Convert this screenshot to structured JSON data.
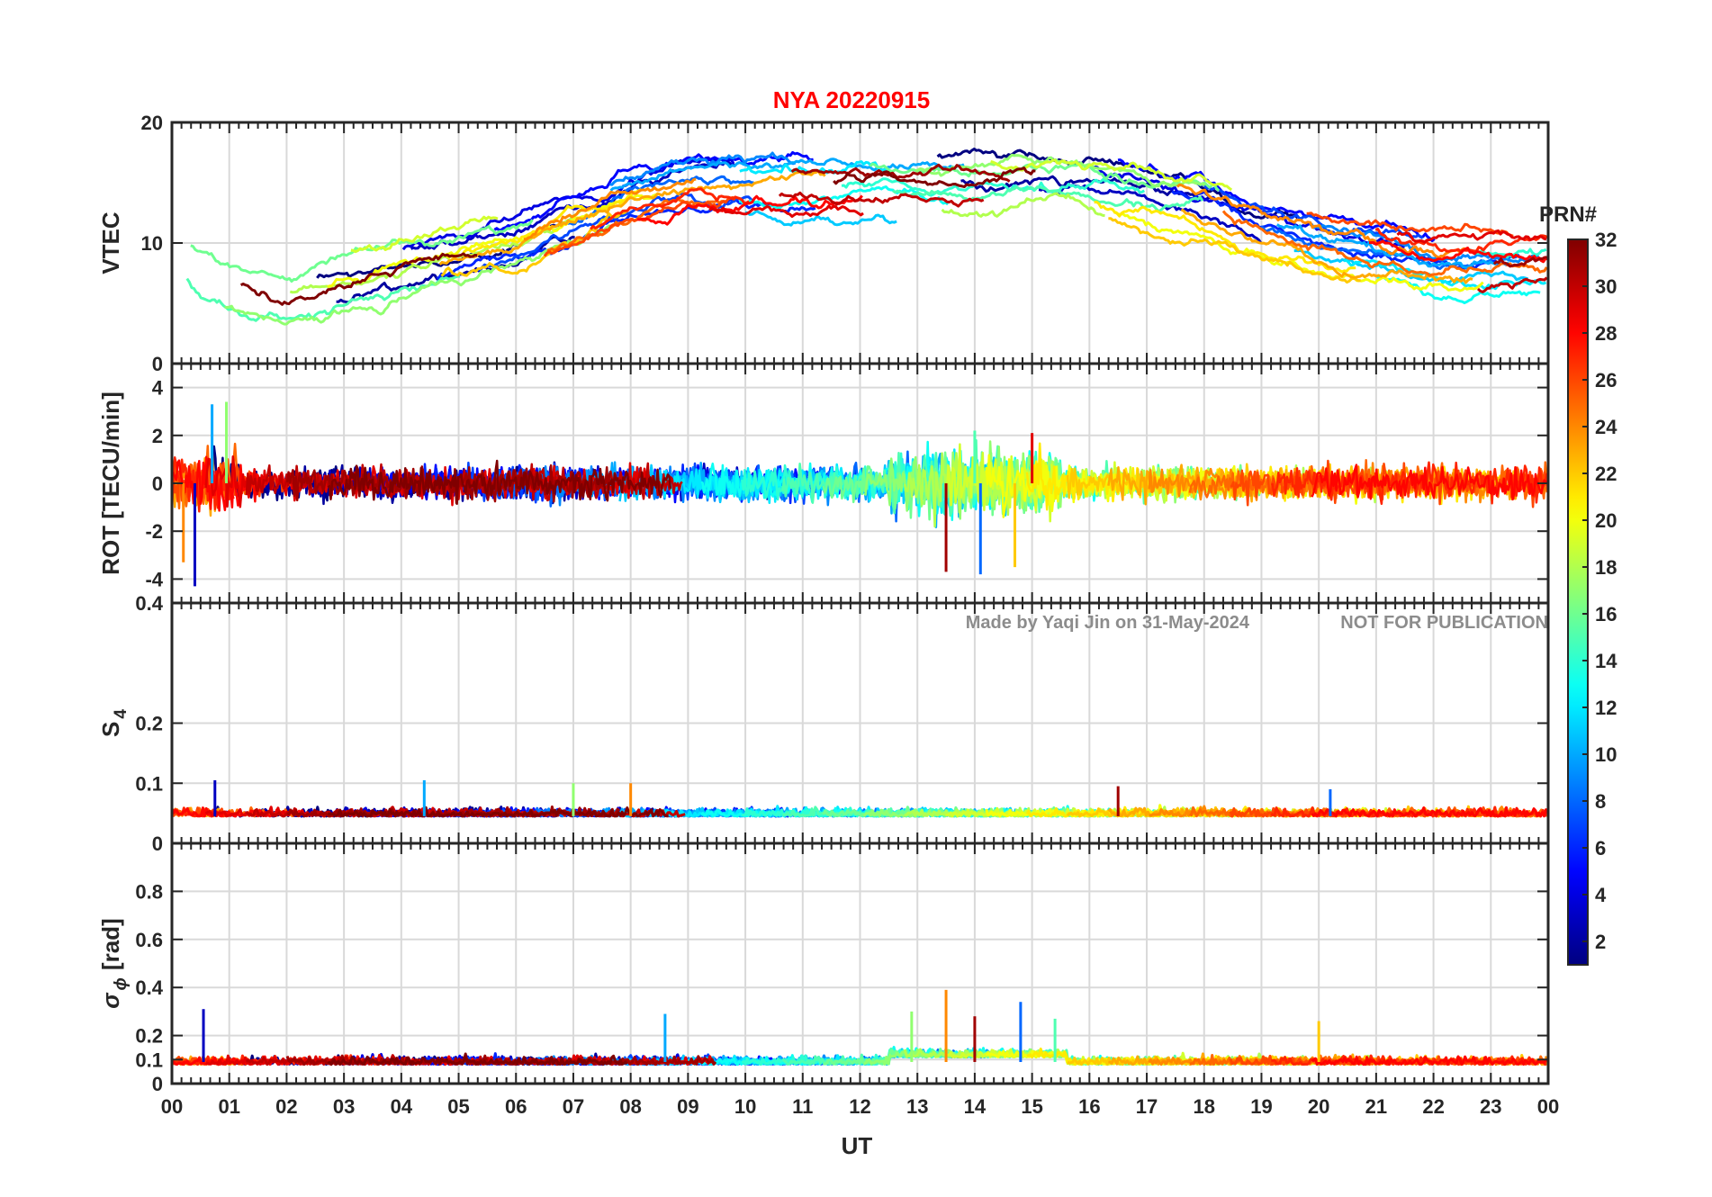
{
  "figure": {
    "title": "NYA   20220915",
    "watermark_author": "Made by Yaqi Jin on 31-May-2024",
    "watermark_notice": "NOT FOR PUBLICATION",
    "title_color": "#ff0000",
    "watermark_color": "#8c8c8c",
    "axis_color": "#262626"
  },
  "chart_data": [
    {
      "type": "line",
      "id": "vtec",
      "ylabel": "VTEC",
      "ylim": [
        0,
        20
      ],
      "yticks": [
        0,
        10,
        20
      ],
      "ytick_labels": [
        "0",
        "10",
        "20"
      ],
      "xlim": [
        0,
        24
      ],
      "grid": true,
      "series_note": "one line per satellite PRN 1-32, colored by PRN (jet colormap)",
      "profile_hours": [
        0,
        0.5,
        1,
        1.5,
        2,
        3,
        4,
        5,
        6,
        7,
        8,
        9,
        10,
        11,
        12,
        13,
        14,
        15,
        16,
        17,
        18,
        19,
        20,
        21,
        22,
        23,
        24
      ],
      "profile_values": [
        10,
        8,
        7,
        6,
        6,
        7,
        8,
        9,
        10,
        12,
        14,
        15,
        15,
        15,
        15,
        15,
        15,
        15,
        15,
        14,
        13,
        11,
        10,
        9,
        8,
        8,
        8
      ]
    },
    {
      "type": "line",
      "id": "rot",
      "ylabel": "ROT [TECU/min]",
      "ylim": [
        -5,
        5
      ],
      "yticks": [
        -4,
        -2,
        0,
        2,
        4
      ],
      "ytick_labels": [
        "-4",
        "-2",
        "0",
        "2",
        "4"
      ],
      "xlim": [
        0,
        24
      ],
      "grid": true,
      "series_note": "one line per satellite PRN 1-32",
      "spikes": [
        {
          "hour": 0.4,
          "value": -4.3
        },
        {
          "hour": 0.7,
          "value": 3.3
        },
        {
          "hour": 0.95,
          "value": 3.4
        },
        {
          "hour": 0.2,
          "value": -3.3
        },
        {
          "hour": 13.5,
          "value": -3.7
        },
        {
          "hour": 14.1,
          "value": -3.8
        },
        {
          "hour": 14.0,
          "value": 2.2
        },
        {
          "hour": 14.7,
          "value": -3.5
        },
        {
          "hour": 15.0,
          "value": 2.1
        }
      ]
    },
    {
      "type": "line",
      "id": "s4",
      "ylabel": "S4",
      "ylabel_main": "S",
      "ylabel_sub": "4",
      "ylim": [
        0,
        0.4
      ],
      "yticks": [
        0,
        0.1,
        0.2,
        0.4
      ],
      "ytick_labels": [
        "0",
        "0.1",
        "0.2",
        "0.4"
      ],
      "xlim": [
        0,
        24
      ],
      "grid": true,
      "series_note": "one line per satellite PRN 1-32, typical level 0.03-0.06",
      "spikes": [
        {
          "hour": 0.75,
          "value": 0.105
        },
        {
          "hour": 4.4,
          "value": 0.105
        },
        {
          "hour": 7.0,
          "value": 0.1
        },
        {
          "hour": 8.0,
          "value": 0.1
        },
        {
          "hour": 16.5,
          "value": 0.095
        },
        {
          "hour": 20.2,
          "value": 0.09
        }
      ]
    },
    {
      "type": "line",
      "id": "sigma_phi",
      "ylabel": "σ ϕ [rad]",
      "ylabel_main": "σ",
      "ylabel_sub": "ϕ",
      "ylabel_unit": "[rad]",
      "ylim": [
        0,
        1
      ],
      "yticks": [
        0,
        0.1,
        0.2,
        0.4,
        0.6,
        0.8
      ],
      "ytick_labels": [
        "0",
        "0.1",
        "0.2",
        "0.4",
        "0.6",
        "0.8"
      ],
      "xlim": [
        0,
        24
      ],
      "grid": true,
      "series_note": "one line per satellite PRN 1-32, typical level 0.05-0.15",
      "spikes": [
        {
          "hour": 0.55,
          "value": 0.31
        },
        {
          "hour": 8.6,
          "value": 0.29
        },
        {
          "hour": 12.9,
          "value": 0.3
        },
        {
          "hour": 13.5,
          "value": 0.39
        },
        {
          "hour": 14.0,
          "value": 0.28
        },
        {
          "hour": 14.8,
          "value": 0.34
        },
        {
          "hour": 15.4,
          "value": 0.27
        },
        {
          "hour": 20.0,
          "value": 0.26
        }
      ]
    }
  ],
  "x_axis": {
    "label": "UT",
    "tick_labels": [
      "00",
      "01",
      "02",
      "03",
      "04",
      "05",
      "06",
      "07",
      "08",
      "09",
      "10",
      "11",
      "12",
      "13",
      "14",
      "15",
      "16",
      "17",
      "18",
      "19",
      "20",
      "21",
      "22",
      "23",
      "00"
    ]
  },
  "colorbar": {
    "title": "PRN#",
    "colormap": "jet",
    "range": [
      1,
      32
    ],
    "ticks": [
      2,
      4,
      6,
      8,
      10,
      12,
      14,
      16,
      18,
      20,
      22,
      24,
      26,
      28,
      30,
      32
    ],
    "tick_labels": [
      "2",
      "4",
      "6",
      "8",
      "10",
      "12",
      "14",
      "16",
      "18",
      "20",
      "22",
      "24",
      "26",
      "28",
      "30",
      "32"
    ]
  }
}
